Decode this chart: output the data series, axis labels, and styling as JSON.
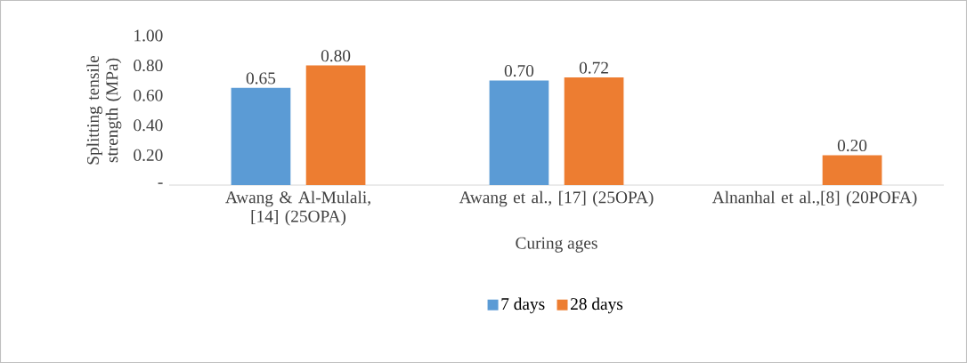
{
  "chart_data": {
    "type": "bar",
    "xlabel": "Curing ages",
    "ylabel": "Splitting tensile strength (MPa)",
    "categories": [
      "Awang & Al-Mulali, [14] (25OPA)",
      "Awang et al., [17] (25OPA)",
      "Alnanhal et al.,[8] (20POFA)"
    ],
    "series": [
      {
        "name": "7 days",
        "color": "#5b9bd5",
        "values": [
          0.65,
          0.7,
          null
        ],
        "value_labels": [
          "0.65",
          "0.70",
          null
        ]
      },
      {
        "name": "28 days",
        "color": "#ed7d31",
        "values": [
          0.8,
          0.72,
          0.2
        ],
        "value_labels": [
          "0.80",
          "0.72",
          "0.20"
        ]
      }
    ],
    "ylim": [
      0,
      1.0
    ],
    "yticks": [
      {
        "value": 0,
        "label": "-"
      },
      {
        "value": 0.2,
        "label": "0.20"
      },
      {
        "value": 0.4,
        "label": "0.40"
      },
      {
        "value": 0.6,
        "label": "0.60"
      },
      {
        "value": 0.8,
        "label": "0.80"
      },
      {
        "value": 1.0,
        "label": "1.00"
      }
    ],
    "legend": "bottom"
  }
}
